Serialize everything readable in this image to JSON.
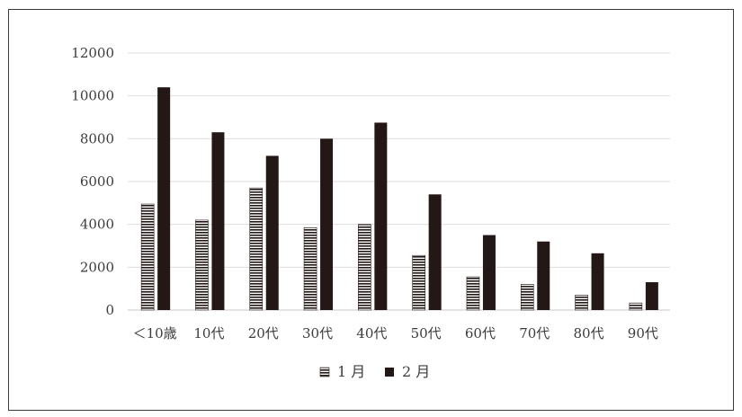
{
  "chart_data": {
    "type": "bar",
    "categories": [
      "＜10歳",
      "10代",
      "20代",
      "30代",
      "40代",
      "50代",
      "60代",
      "70代",
      "80代",
      "90代"
    ],
    "series": [
      {
        "name": "1 月",
        "pattern": "horizontal-stripes",
        "color": "#231815",
        "values": [
          4950,
          4200,
          5700,
          3850,
          4000,
          2550,
          1550,
          1200,
          700,
          330
        ]
      },
      {
        "name": "2 月",
        "pattern": "solid",
        "color": "#231815",
        "values": [
          10400,
          8300,
          7200,
          8000,
          8750,
          5400,
          3500,
          3200,
          2650,
          1300
        ]
      }
    ],
    "yticks": [
      "0",
      "2000",
      "4000",
      "6000",
      "8000",
      "10000",
      "12000"
    ],
    "ylim": [
      0,
      12000
    ],
    "grid": true,
    "legend_position": "bottom-center"
  }
}
